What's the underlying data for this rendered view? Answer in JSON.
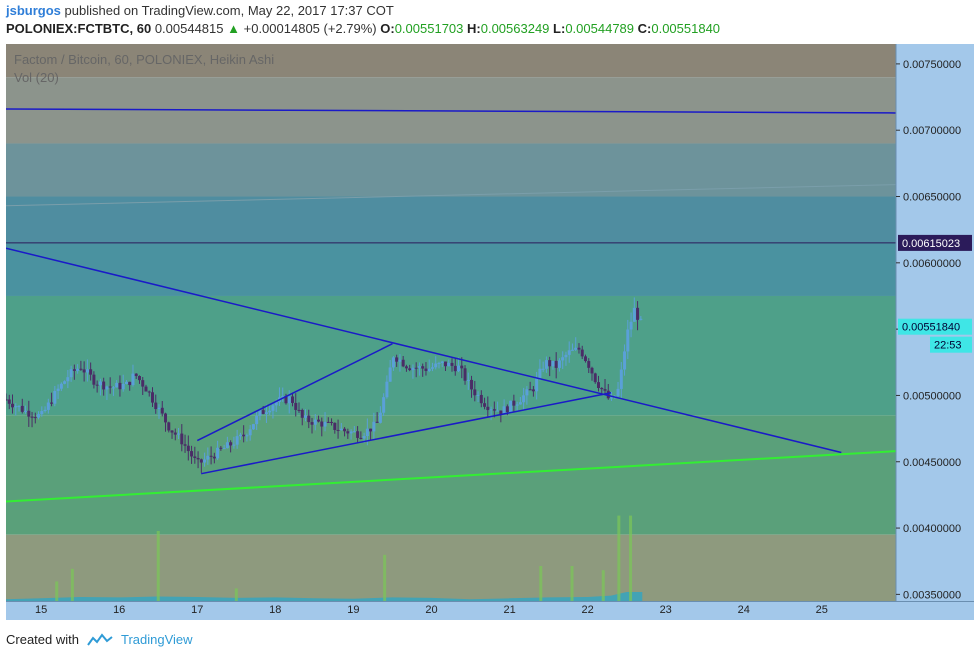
{
  "header": {
    "user": "jsburgos",
    "published": " published on TradingView.com, May 22, 2017 17:37 COT",
    "symbol": "POLONIEX:FCTBTC, 60",
    "last": "0.00544815",
    "arrow": "▲",
    "change": "+0.00014805 (+2.79%)",
    "o_label": "O:",
    "o": "0.00551703",
    "h_label": "H:",
    "h": "0.00563249",
    "l_label": "L:",
    "l": "0.00544789",
    "c_label": "C:",
    "c": "0.00551840"
  },
  "legend": {
    "title": "Factom / Bitcoin, 60, POLONIEX, Heikin Ashi",
    "vol": "Vol (20)"
  },
  "footer": {
    "created": "Created with",
    "brand": "TradingView"
  },
  "colors": {
    "accent": "#2f7ed8",
    "up": "#22a022",
    "candle_up": "#5aa0d8",
    "candle_down": "#4a2c66",
    "trendline": "#1a1ac8",
    "support": "#33ee33",
    "axis_bg": "#a3c8ea",
    "price_tag_dark": "#2b1b5a",
    "price_tag_cyan": "#3fe6e6"
  },
  "chart_data": {
    "type": "candlestick",
    "title": "Factom / Bitcoin, 60, POLONIEX, Heikin Ashi",
    "xlim": [
      14.55,
      25.95
    ],
    "ylim": [
      0.00345,
      0.00765
    ],
    "y_ticks": [
      "0.00750000",
      "0.00700000",
      "0.00650000",
      "0.00600000",
      "0.00550000",
      "0.00500000",
      "0.00450000",
      "0.00400000",
      "0.00350000"
    ],
    "x_ticks": [
      "15",
      "16",
      "17",
      "18",
      "19",
      "20",
      "21",
      "22",
      "23",
      "24",
      "25"
    ],
    "price_labels": [
      {
        "label": "0.00615023",
        "value": 0.00615023,
        "style": "dark"
      },
      {
        "label": "0.00551840",
        "value": 0.0055184,
        "style": "cyan"
      },
      {
        "label": "22:53",
        "value": null,
        "style": "cyan-sub"
      }
    ],
    "zones": [
      {
        "from": 0.0074,
        "to": 0.0079,
        "color": "#8b8577"
      },
      {
        "from": 0.0069,
        "to": 0.0074,
        "color": "#8c948c"
      },
      {
        "from": 0.0065,
        "to": 0.0069,
        "color": "#6d939b"
      },
      {
        "from": 0.00615,
        "to": 0.0065,
        "color": "#4f8da0"
      },
      {
        "from": 0.00575,
        "to": 0.00615,
        "color": "#4a92a0"
      },
      {
        "from": 0.00485,
        "to": 0.00575,
        "color": "#4ea089"
      },
      {
        "from": 0.00395,
        "to": 0.00485,
        "color": "#5aa07a"
      },
      {
        "from": 0.003,
        "to": 0.00395,
        "color": "#8e9a7e"
      }
    ],
    "lines": [
      {
        "name": "",
        "kind": "resistance-top",
        "x1": 14.55,
        "y1": 0.00716,
        "x2": 25.95,
        "y2": 0.00713,
        "color": "#1a1ac8"
      },
      {
        "name": "",
        "kind": "channel-top",
        "x1": 14.55,
        "y1": 0.00643,
        "x2": 25.95,
        "y2": 0.00659,
        "color": "#7a9eaa"
      },
      {
        "name": "",
        "kind": "last-price",
        "x1": 14.55,
        "y1": 0.00615,
        "x2": 25.95,
        "y2": 0.00615,
        "color": "#2b1b5a"
      },
      {
        "name": "",
        "kind": "descending-trend",
        "x1": 14.55,
        "y1": 0.00611,
        "x2": 25.25,
        "y2": 0.00457,
        "color": "#1a1ac8"
      },
      {
        "name": "",
        "kind": "wedge-lower",
        "x1": 17.05,
        "y1": 0.00441,
        "x2": 22.3,
        "y2": 0.00502,
        "color": "#1a1ac8"
      },
      {
        "name": "",
        "kind": "wedge-upper",
        "x1": 17.0,
        "y1": 0.00466,
        "x2": 19.5,
        "y2": 0.00539,
        "color": "#1a1ac8"
      },
      {
        "name": "",
        "kind": "support",
        "x1": 14.55,
        "y1": 0.0042,
        "x2": 25.95,
        "y2": 0.00458,
        "color": "#33ee33"
      }
    ],
    "path_points": [
      [
        14.55,
        0.00497
      ],
      [
        14.8,
        0.00488
      ],
      [
        15.0,
        0.00484
      ],
      [
        15.2,
        0.00503
      ],
      [
        15.35,
        0.00515
      ],
      [
        15.5,
        0.00522
      ],
      [
        15.7,
        0.0051
      ],
      [
        15.9,
        0.00506
      ],
      [
        16.1,
        0.00508
      ],
      [
        16.2,
        0.00516
      ],
      [
        16.35,
        0.00505
      ],
      [
        16.5,
        0.0049
      ],
      [
        16.65,
        0.00475
      ],
      [
        16.8,
        0.00466
      ],
      [
        17.0,
        0.00448
      ],
      [
        17.2,
        0.00455
      ],
      [
        17.4,
        0.00462
      ],
      [
        17.6,
        0.0047
      ],
      [
        17.8,
        0.00486
      ],
      [
        18.0,
        0.00495
      ],
      [
        18.2,
        0.00498
      ],
      [
        18.35,
        0.00482
      ],
      [
        18.6,
        0.00479
      ],
      [
        18.9,
        0.00473
      ],
      [
        19.1,
        0.00471
      ],
      [
        19.3,
        0.00478
      ],
      [
        19.45,
        0.00512
      ],
      [
        19.5,
        0.00531
      ],
      [
        19.7,
        0.00522
      ],
      [
        19.95,
        0.0052
      ],
      [
        20.15,
        0.00524
      ],
      [
        20.35,
        0.00521
      ],
      [
        20.5,
        0.00506
      ],
      [
        20.7,
        0.00493
      ],
      [
        20.9,
        0.00488
      ],
      [
        21.1,
        0.00496
      ],
      [
        21.3,
        0.00505
      ],
      [
        21.45,
        0.00525
      ],
      [
        21.6,
        0.00522
      ],
      [
        21.75,
        0.00532
      ],
      [
        21.9,
        0.00535
      ],
      [
        22.0,
        0.00525
      ],
      [
        22.1,
        0.00512
      ],
      [
        22.2,
        0.00503
      ],
      [
        22.3,
        0.00495
      ],
      [
        22.4,
        0.00505
      ],
      [
        22.5,
        0.00545
      ],
      [
        22.6,
        0.00565
      ],
      [
        22.7,
        0.00552
      ]
    ],
    "volume_points": [
      [
        14.55,
        0.2
      ],
      [
        15.0,
        0.3
      ],
      [
        15.5,
        0.45
      ],
      [
        16.0,
        0.4
      ],
      [
        16.5,
        0.5
      ],
      [
        17.0,
        0.45
      ],
      [
        17.5,
        0.35
      ],
      [
        18.0,
        0.4
      ],
      [
        18.5,
        0.3
      ],
      [
        19.0,
        0.25
      ],
      [
        19.5,
        0.4
      ],
      [
        20.0,
        0.35
      ],
      [
        20.5,
        0.2
      ],
      [
        21.0,
        0.3
      ],
      [
        21.5,
        0.4
      ],
      [
        22.0,
        0.45
      ],
      [
        22.3,
        0.6
      ],
      [
        22.5,
        1.0
      ],
      [
        22.7,
        1.0
      ]
    ],
    "volume_spikes": [
      [
        15.2,
        1.4
      ],
      [
        15.4,
        2.3
      ],
      [
        16.5,
        5.0
      ],
      [
        17.5,
        0.9
      ],
      [
        19.4,
        3.3
      ],
      [
        21.4,
        2.5
      ],
      [
        21.8,
        2.5
      ],
      [
        22.2,
        2.2
      ],
      [
        22.4,
        6.1
      ],
      [
        22.55,
        6.1
      ]
    ]
  }
}
